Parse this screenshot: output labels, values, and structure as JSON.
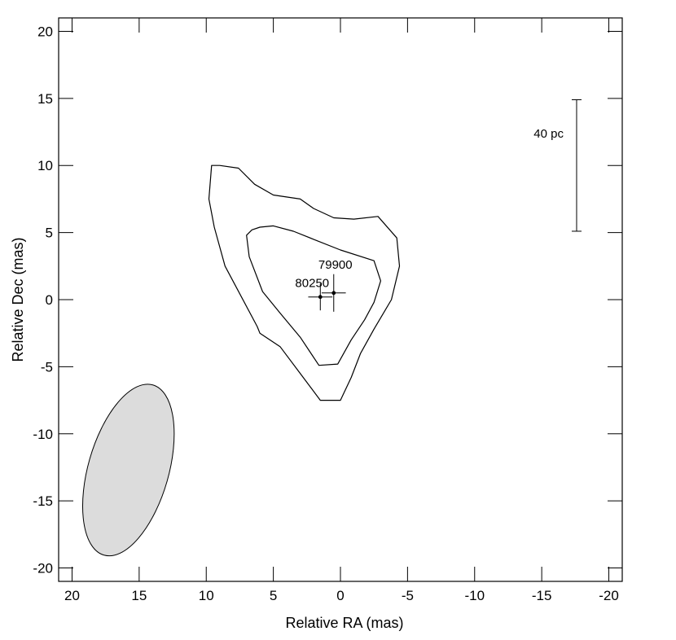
{
  "chart_data": {
    "type": "scatter",
    "title": "",
    "xlabel": "Relative RA (mas)",
    "ylabel": "Relative Dec (mas)",
    "xlim": [
      21,
      -21
    ],
    "ylim": [
      -21,
      21
    ],
    "x_ticks": [
      "20",
      "15",
      "10",
      "5",
      "0",
      "-5",
      "-10",
      "-15",
      "-20"
    ],
    "y_ticks": [
      "20",
      "15",
      "10",
      "5",
      "0",
      "-5",
      "-10",
      "-15",
      "-20"
    ],
    "grid": false,
    "points": [
      {
        "label": "80250",
        "x": 1.5,
        "y": 0.2,
        "xerr": 0.9,
        "yerr": 1.0
      },
      {
        "label": "79900",
        "x": 0.5,
        "y": 0.5,
        "xerr": 0.9,
        "yerr": 1.4
      }
    ],
    "contours": [
      {
        "level": "outer",
        "points": [
          [
            9.6,
            10.0
          ],
          [
            9.0,
            10.0
          ],
          [
            7.6,
            9.8
          ],
          [
            6.4,
            8.6
          ],
          [
            5.0,
            7.8
          ],
          [
            3.0,
            7.5
          ],
          [
            2.0,
            6.8
          ],
          [
            0.5,
            6.1
          ],
          [
            -1.0,
            6.0
          ],
          [
            -2.8,
            6.2
          ],
          [
            -4.2,
            4.6
          ],
          [
            -4.4,
            2.5
          ],
          [
            -3.8,
            0.0
          ],
          [
            -2.5,
            -2.2
          ],
          [
            -1.5,
            -4.0
          ],
          [
            -0.8,
            -5.8
          ],
          [
            0.0,
            -7.5
          ],
          [
            1.5,
            -7.5
          ],
          [
            3.0,
            -5.5
          ],
          [
            4.5,
            -3.5
          ],
          [
            6.0,
            -2.5
          ],
          [
            6.2,
            -2.0
          ],
          [
            8.6,
            2.5
          ],
          [
            9.4,
            5.4
          ],
          [
            9.8,
            7.5
          ]
        ]
      },
      {
        "level": "inner",
        "points": [
          [
            6.6,
            5.2
          ],
          [
            6.0,
            5.4
          ],
          [
            5.0,
            5.5
          ],
          [
            3.5,
            5.1
          ],
          [
            2.0,
            4.5
          ],
          [
            0.0,
            3.7
          ],
          [
            -2.5,
            2.9
          ],
          [
            -3.0,
            1.4
          ],
          [
            -2.5,
            -0.2
          ],
          [
            -1.8,
            -1.5
          ],
          [
            -0.8,
            -3.0
          ],
          [
            0.2,
            -4.8
          ],
          [
            1.6,
            -4.9
          ],
          [
            3.0,
            -2.8
          ],
          [
            4.5,
            -1.0
          ],
          [
            5.8,
            0.6
          ],
          [
            6.8,
            3.2
          ],
          [
            7.0,
            4.8
          ]
        ]
      }
    ],
    "beam": {
      "center_x": 15.8,
      "center_y": -12.7,
      "semi_major_mas": 6.6,
      "semi_minor_mas": 3.0,
      "position_angle_deg": 16,
      "fill": "#dcdcdc"
    },
    "scale_bar": {
      "label": "40 pc",
      "x": -17.6,
      "y_from": 5.1,
      "y_to": 14.9
    }
  }
}
